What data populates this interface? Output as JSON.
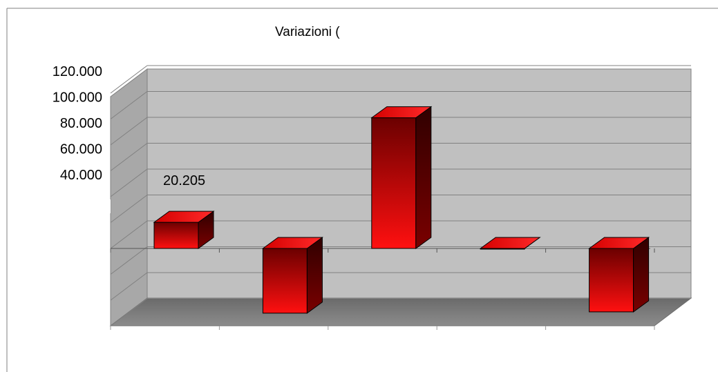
{
  "chart_data": {
    "type": "bar",
    "style": "3d-column",
    "title": "Variazioni (",
    "categories": [
      "",
      "",
      "",
      "",
      ""
    ],
    "values": [
      20205,
      -50000,
      101000,
      0,
      -49000
    ],
    "data_labels": [
      "20.205",
      "",
      "",
      "",
      ""
    ],
    "y_ticks_visible": [
      "120.000",
      "100.000",
      "80.000",
      "60.000",
      "40.000"
    ],
    "ylim": [
      -60000,
      120000
    ],
    "grid": true,
    "legend": "none",
    "colors": {
      "bar_top": "#ff1a1a",
      "bar_front_dark": "#6b0000",
      "bar_front_light": "#ff1010",
      "bar_side": "#5a0000",
      "back_wall": "#c0c0c0",
      "side_wall": "#a8a8a8",
      "floor": "#808080",
      "gridline": "#808080"
    }
  }
}
